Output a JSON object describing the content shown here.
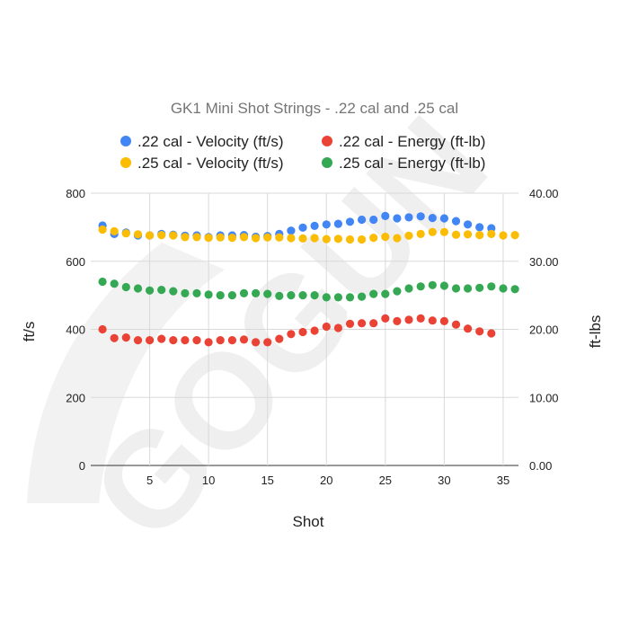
{
  "watermark_text": "GOGUN",
  "chart_data": {
    "type": "scatter",
    "title": "GK1 Mini Shot Strings - .22 cal and .25 cal",
    "xlabel": "Shot",
    "ylabel_left": "ft/s",
    "ylabel_right": "ft-lbs",
    "xlim": [
      0,
      36.3
    ],
    "x_ticks": [
      "5",
      "10",
      "15",
      "20",
      "25",
      "30",
      "35"
    ],
    "ylim_left": [
      0,
      800
    ],
    "y_ticks_left": [
      "0",
      "200",
      "400",
      "600",
      "800"
    ],
    "ylim_right": [
      0,
      40
    ],
    "y_ticks_right": [
      "0.00",
      "10.00",
      "20.00",
      "30.00",
      "40.00"
    ],
    "grid": true,
    "legend_position": "top",
    "series": [
      {
        "name": ".22 cal - Velocity (ft/s)",
        "axis": "left",
        "color": "#4285f4",
        "x": [
          1,
          2,
          3,
          4,
          5,
          6,
          7,
          8,
          9,
          10,
          11,
          12,
          13,
          14,
          15,
          16,
          17,
          18,
          19,
          20,
          21,
          22,
          23,
          24,
          25,
          26,
          27,
          28,
          29,
          30,
          31,
          32,
          33,
          34
        ],
        "values": [
          705,
          680,
          684,
          676,
          676,
          680,
          678,
          675,
          676,
          671,
          676,
          676,
          677,
          672,
          674,
          680,
          690,
          699,
          704,
          708,
          710,
          716,
          722,
          722,
          733,
          726,
          729,
          732,
          727,
          726,
          718,
          708,
          700,
          697
        ]
      },
      {
        "name": ".22 cal - Energy (ft-lb)",
        "axis": "right",
        "color": "#ea4335",
        "x": [
          1,
          2,
          3,
          4,
          5,
          6,
          7,
          8,
          9,
          10,
          11,
          12,
          13,
          14,
          15,
          16,
          17,
          18,
          19,
          20,
          21,
          22,
          23,
          24,
          25,
          26,
          27,
          28,
          29,
          30,
          31,
          32,
          33,
          34
        ],
        "values": [
          20.0,
          18.7,
          18.8,
          18.4,
          18.4,
          18.6,
          18.4,
          18.4,
          18.4,
          18.1,
          18.4,
          18.4,
          18.5,
          18.1,
          18.1,
          18.6,
          19.3,
          19.6,
          19.8,
          20.4,
          20.2,
          20.8,
          20.9,
          20.9,
          21.6,
          21.2,
          21.4,
          21.6,
          21.3,
          21.2,
          20.7,
          20.1,
          19.7,
          19.4
        ]
      },
      {
        "name": ".25 cal - Velocity (ft/s)",
        "axis": "left",
        "color": "#fbbc04",
        "x": [
          1,
          2,
          3,
          4,
          5,
          6,
          7,
          8,
          9,
          10,
          11,
          12,
          13,
          14,
          15,
          16,
          17,
          18,
          19,
          20,
          21,
          22,
          23,
          24,
          25,
          26,
          27,
          28,
          29,
          30,
          31,
          32,
          33,
          34,
          35,
          36
        ],
        "values": [
          693,
          688,
          682,
          679,
          676,
          677,
          676,
          671,
          671,
          669,
          670,
          669,
          671,
          668,
          670,
          670,
          668,
          667,
          668,
          665,
          666,
          664,
          664,
          669,
          672,
          668,
          675,
          680,
          686,
          686,
          678,
          679,
          677,
          680,
          676,
          677
        ]
      },
      {
        "name": ".25 cal - Energy (ft-lb)",
        "axis": "right",
        "color": "#34a853",
        "x": [
          1,
          2,
          3,
          4,
          5,
          6,
          7,
          8,
          9,
          10,
          11,
          12,
          13,
          14,
          15,
          16,
          17,
          18,
          19,
          20,
          21,
          22,
          23,
          24,
          25,
          26,
          27,
          28,
          29,
          30,
          31,
          32,
          33,
          34,
          35,
          36
        ],
        "values": [
          27.0,
          26.7,
          26.2,
          26.0,
          25.7,
          25.8,
          25.6,
          25.3,
          25.3,
          25.1,
          25.0,
          25.0,
          25.3,
          25.3,
          25.2,
          24.9,
          25.0,
          25.0,
          25.0,
          24.7,
          24.7,
          24.7,
          24.8,
          25.2,
          25.2,
          25.6,
          26.0,
          26.3,
          26.5,
          26.4,
          26.0,
          26.0,
          26.1,
          26.3,
          26.0,
          25.9
        ]
      }
    ]
  }
}
